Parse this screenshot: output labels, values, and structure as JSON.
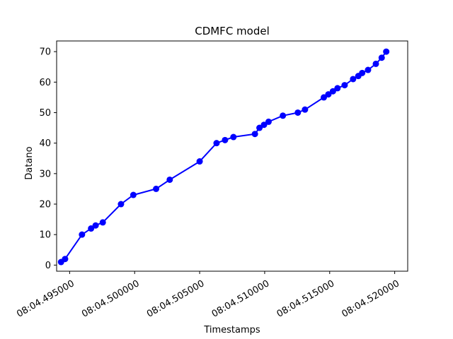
{
  "chart_data": {
    "type": "line",
    "title": "CDMFC model",
    "xlabel": "Timestamps",
    "ylabel": "Datano",
    "x_prefix": "08:04.",
    "x_unit": "seconds-fraction",
    "xlim": [
      0.494,
      0.521
    ],
    "ylim": [
      -2,
      73.5
    ],
    "xticks": [
      0.495,
      0.5,
      0.505,
      0.51,
      0.515,
      0.52
    ],
    "xtick_labels": [
      "08:04.495000",
      "08:04.500000",
      "08:04.505000",
      "08:04.510000",
      "08:04.515000",
      "08:04.520000"
    ],
    "yticks": [
      0,
      10,
      20,
      30,
      40,
      50,
      60,
      70
    ],
    "ytick_labels": [
      "0",
      "10",
      "20",
      "30",
      "40",
      "50",
      "60",
      "70"
    ],
    "grid": false,
    "series": [
      {
        "color": "#0000ff",
        "marker": "circle",
        "x": [
          0.49434,
          0.49465,
          0.49595,
          0.49665,
          0.497,
          0.49755,
          0.49895,
          0.4999,
          0.50165,
          0.5027,
          0.505,
          0.5063,
          0.50695,
          0.5076,
          0.50925,
          0.5096,
          0.50995,
          0.5103,
          0.5114,
          0.51255,
          0.5131,
          0.51455,
          0.5149,
          0.51525,
          0.5156,
          0.51615,
          0.5168,
          0.5172,
          0.5175,
          0.51795,
          0.51855,
          0.519,
          0.51935
        ],
        "y": [
          1,
          2,
          10,
          12,
          13,
          14,
          20,
          23,
          25,
          28,
          34,
          40,
          41,
          42,
          43,
          45,
          46,
          47,
          49,
          50,
          51,
          55,
          56,
          57,
          58,
          59,
          61,
          62,
          63,
          64,
          66,
          68,
          70
        ]
      }
    ]
  }
}
